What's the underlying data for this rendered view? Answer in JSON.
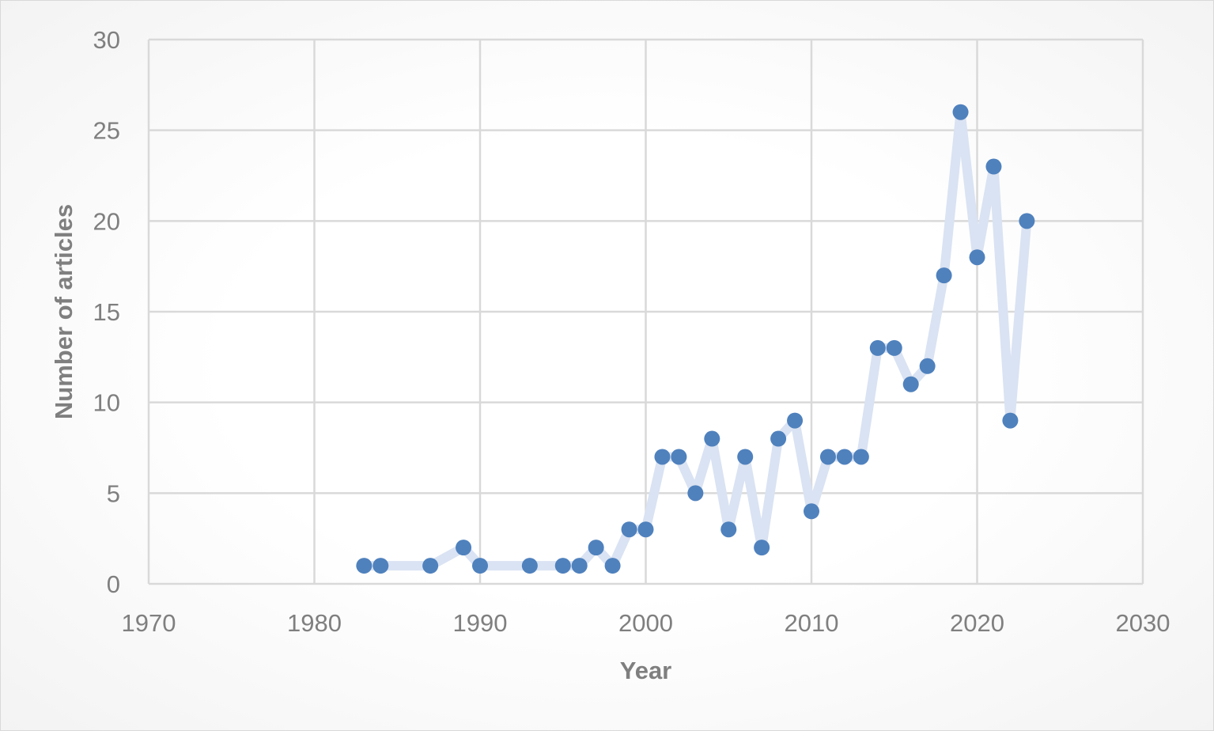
{
  "chart_data": {
    "type": "line",
    "title": "",
    "xlabel": "Year",
    "ylabel": "Number of articles",
    "xlim": [
      1970,
      2030
    ],
    "ylim": [
      0,
      30
    ],
    "x_ticks": [
      "1970",
      "1980",
      "1990",
      "2000",
      "2010",
      "2020",
      "2030"
    ],
    "y_ticks": [
      "0",
      "5",
      "10",
      "15",
      "20",
      "25",
      "30"
    ],
    "grid": true,
    "legend": "none",
    "series": [
      {
        "line_color": "#dae3f3",
        "marker_color": "#4f81bd",
        "x": [
          1983,
          1984,
          1987,
          1989,
          1990,
          1993,
          1995,
          1996,
          1997,
          1998,
          1999,
          2000,
          2001,
          2002,
          2003,
          2004,
          2005,
          2006,
          2007,
          2008,
          2009,
          2010,
          2011,
          2012,
          2013,
          2014,
          2015,
          2016,
          2017,
          2018,
          2019,
          2020,
          2021,
          2022,
          2023
        ],
        "y": [
          1,
          1,
          1,
          2,
          1,
          1,
          1,
          1,
          2,
          1,
          3,
          3,
          7,
          7,
          5,
          8,
          3,
          7,
          2,
          8,
          9,
          4,
          7,
          7,
          7,
          13,
          13,
          11,
          12,
          17,
          26,
          18,
          23,
          9,
          20
        ]
      }
    ]
  }
}
